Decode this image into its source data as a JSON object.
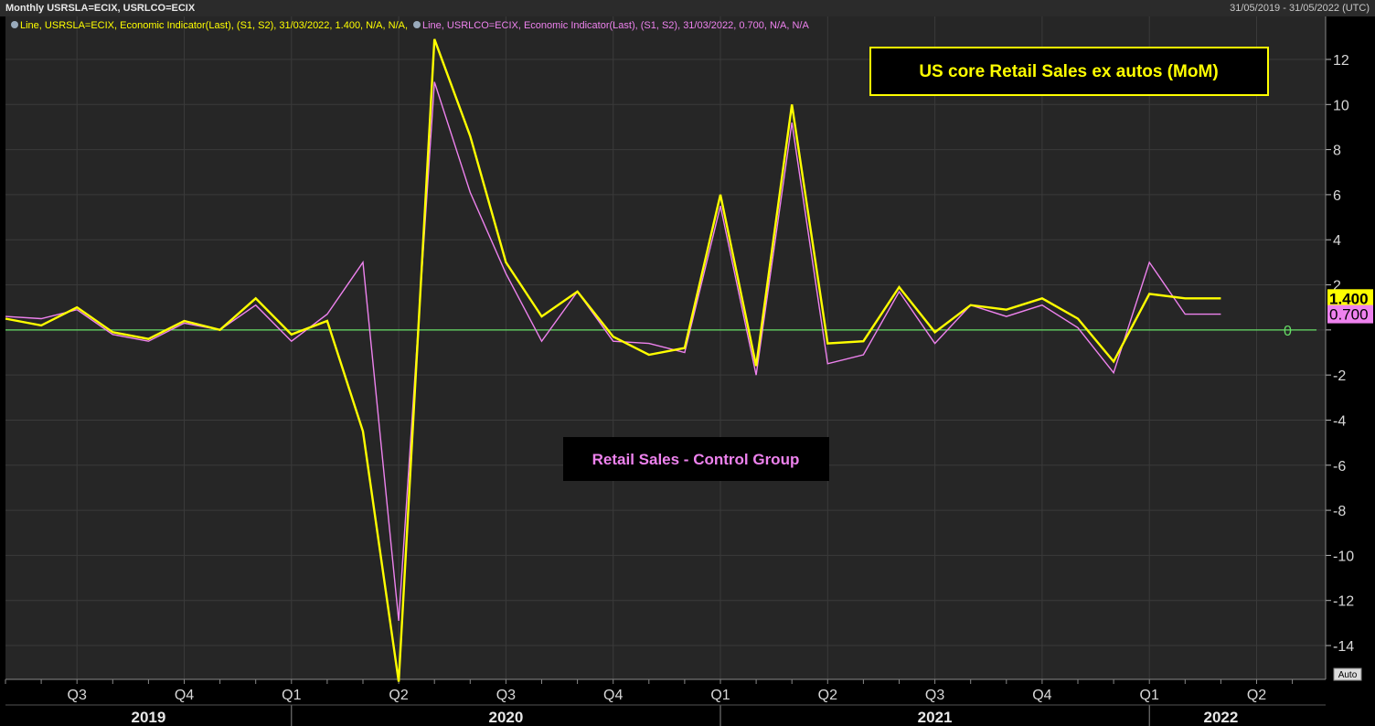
{
  "header": {
    "title": "Monthly USRSLA=ECIX, USRLCO=ECIX",
    "date_range": "31/05/2019 - 31/05/2022 (UTC)"
  },
  "legend": [
    {
      "text": "Line, USRSLA=ECIX, Economic Indicator(Last), (S1, S2), 31/03/2022, 1.400, N/A, N/A,",
      "color": "#ffff00"
    },
    {
      "text": "Line, USRLCO=ECIX, Economic Indicator(Last), (S1, S2), 31/03/2022, 0.700, N/A, N/A",
      "color": "#ee82ee"
    }
  ],
  "annotations": {
    "title_box": "US core Retail Sales ex autos (MoM)",
    "control_box": "Retail Sales - Control Group",
    "zero_label": "0",
    "auto_label": "Auto"
  },
  "chart_data": {
    "type": "line",
    "ylim": [
      -15.5,
      13.5
    ],
    "y_ticks": [
      12,
      10,
      8,
      6,
      4,
      2,
      0,
      -2,
      -4,
      -6,
      -8,
      -10,
      -12,
      -14
    ],
    "y_tick_labels": [
      "12",
      "10",
      "8",
      "6",
      "4",
      "2",
      "0",
      "-2",
      "-4",
      "-6",
      "-8",
      "-10",
      "-12",
      "-14"
    ],
    "x_start": "2019-05",
    "x": [
      "2019-05",
      "2019-06",
      "2019-07",
      "2019-08",
      "2019-09",
      "2019-10",
      "2019-11",
      "2019-12",
      "2020-01",
      "2020-02",
      "2020-03",
      "2020-04",
      "2020-05",
      "2020-06",
      "2020-07",
      "2020-08",
      "2020-09",
      "2020-10",
      "2020-11",
      "2020-12",
      "2021-01",
      "2021-02",
      "2021-03",
      "2021-04",
      "2021-05",
      "2021-06",
      "2021-07",
      "2021-08",
      "2021-09",
      "2021-10",
      "2021-11",
      "2021-12",
      "2022-01",
      "2022-02",
      "2022-03"
    ],
    "quarter_labels": [
      {
        "label": "Q3",
        "month": "2019-07"
      },
      {
        "label": "Q4",
        "month": "2019-10"
      },
      {
        "label": "Q1",
        "month": "2020-01"
      },
      {
        "label": "Q2",
        "month": "2020-04"
      },
      {
        "label": "Q3",
        "month": "2020-07"
      },
      {
        "label": "Q4",
        "month": "2020-10"
      },
      {
        "label": "Q1",
        "month": "2021-01"
      },
      {
        "label": "Q2",
        "month": "2021-04"
      },
      {
        "label": "Q3",
        "month": "2021-07"
      },
      {
        "label": "Q4",
        "month": "2021-10"
      },
      {
        "label": "Q1",
        "month": "2022-01"
      },
      {
        "label": "Q2",
        "month": "2022-04"
      }
    ],
    "year_labels": [
      {
        "label": "2019",
        "month": "2019-09"
      },
      {
        "label": "2020",
        "month": "2020-07"
      },
      {
        "label": "2021",
        "month": "2021-07"
      },
      {
        "label": "2022",
        "month": "2022-03"
      }
    ],
    "year_dividers": [
      "2020-01",
      "2021-01",
      "2022-01"
    ],
    "series": [
      {
        "id": "USRSLA",
        "color": "#ffff00",
        "last_label": "1.400",
        "values": [
          0.5,
          0.2,
          1.0,
          -0.1,
          -0.4,
          0.4,
          0.0,
          1.4,
          -0.2,
          0.4,
          -4.5,
          -15.6,
          12.9,
          8.6,
          3.0,
          0.6,
          1.7,
          -0.3,
          -1.1,
          -0.8,
          6.0,
          -1.6,
          10.0,
          -0.6,
          -0.5,
          1.9,
          -0.1,
          1.1,
          0.9,
          1.4,
          0.5,
          -1.4,
          1.6,
          1.4,
          1.4
        ]
      },
      {
        "id": "USRLCO",
        "color": "#ee82ee",
        "last_label": "0.700",
        "values": [
          0.6,
          0.5,
          0.9,
          -0.2,
          -0.5,
          0.3,
          0.0,
          1.1,
          -0.5,
          0.7,
          3.0,
          -12.9,
          11.0,
          6.1,
          2.5,
          -0.5,
          1.7,
          -0.5,
          -0.6,
          -1.0,
          5.5,
          -2.0,
          9.2,
          -1.5,
          -1.1,
          1.7,
          -0.6,
          1.1,
          0.6,
          1.1,
          0.1,
          -1.9,
          3.0,
          0.7,
          0.7
        ]
      }
    ]
  }
}
